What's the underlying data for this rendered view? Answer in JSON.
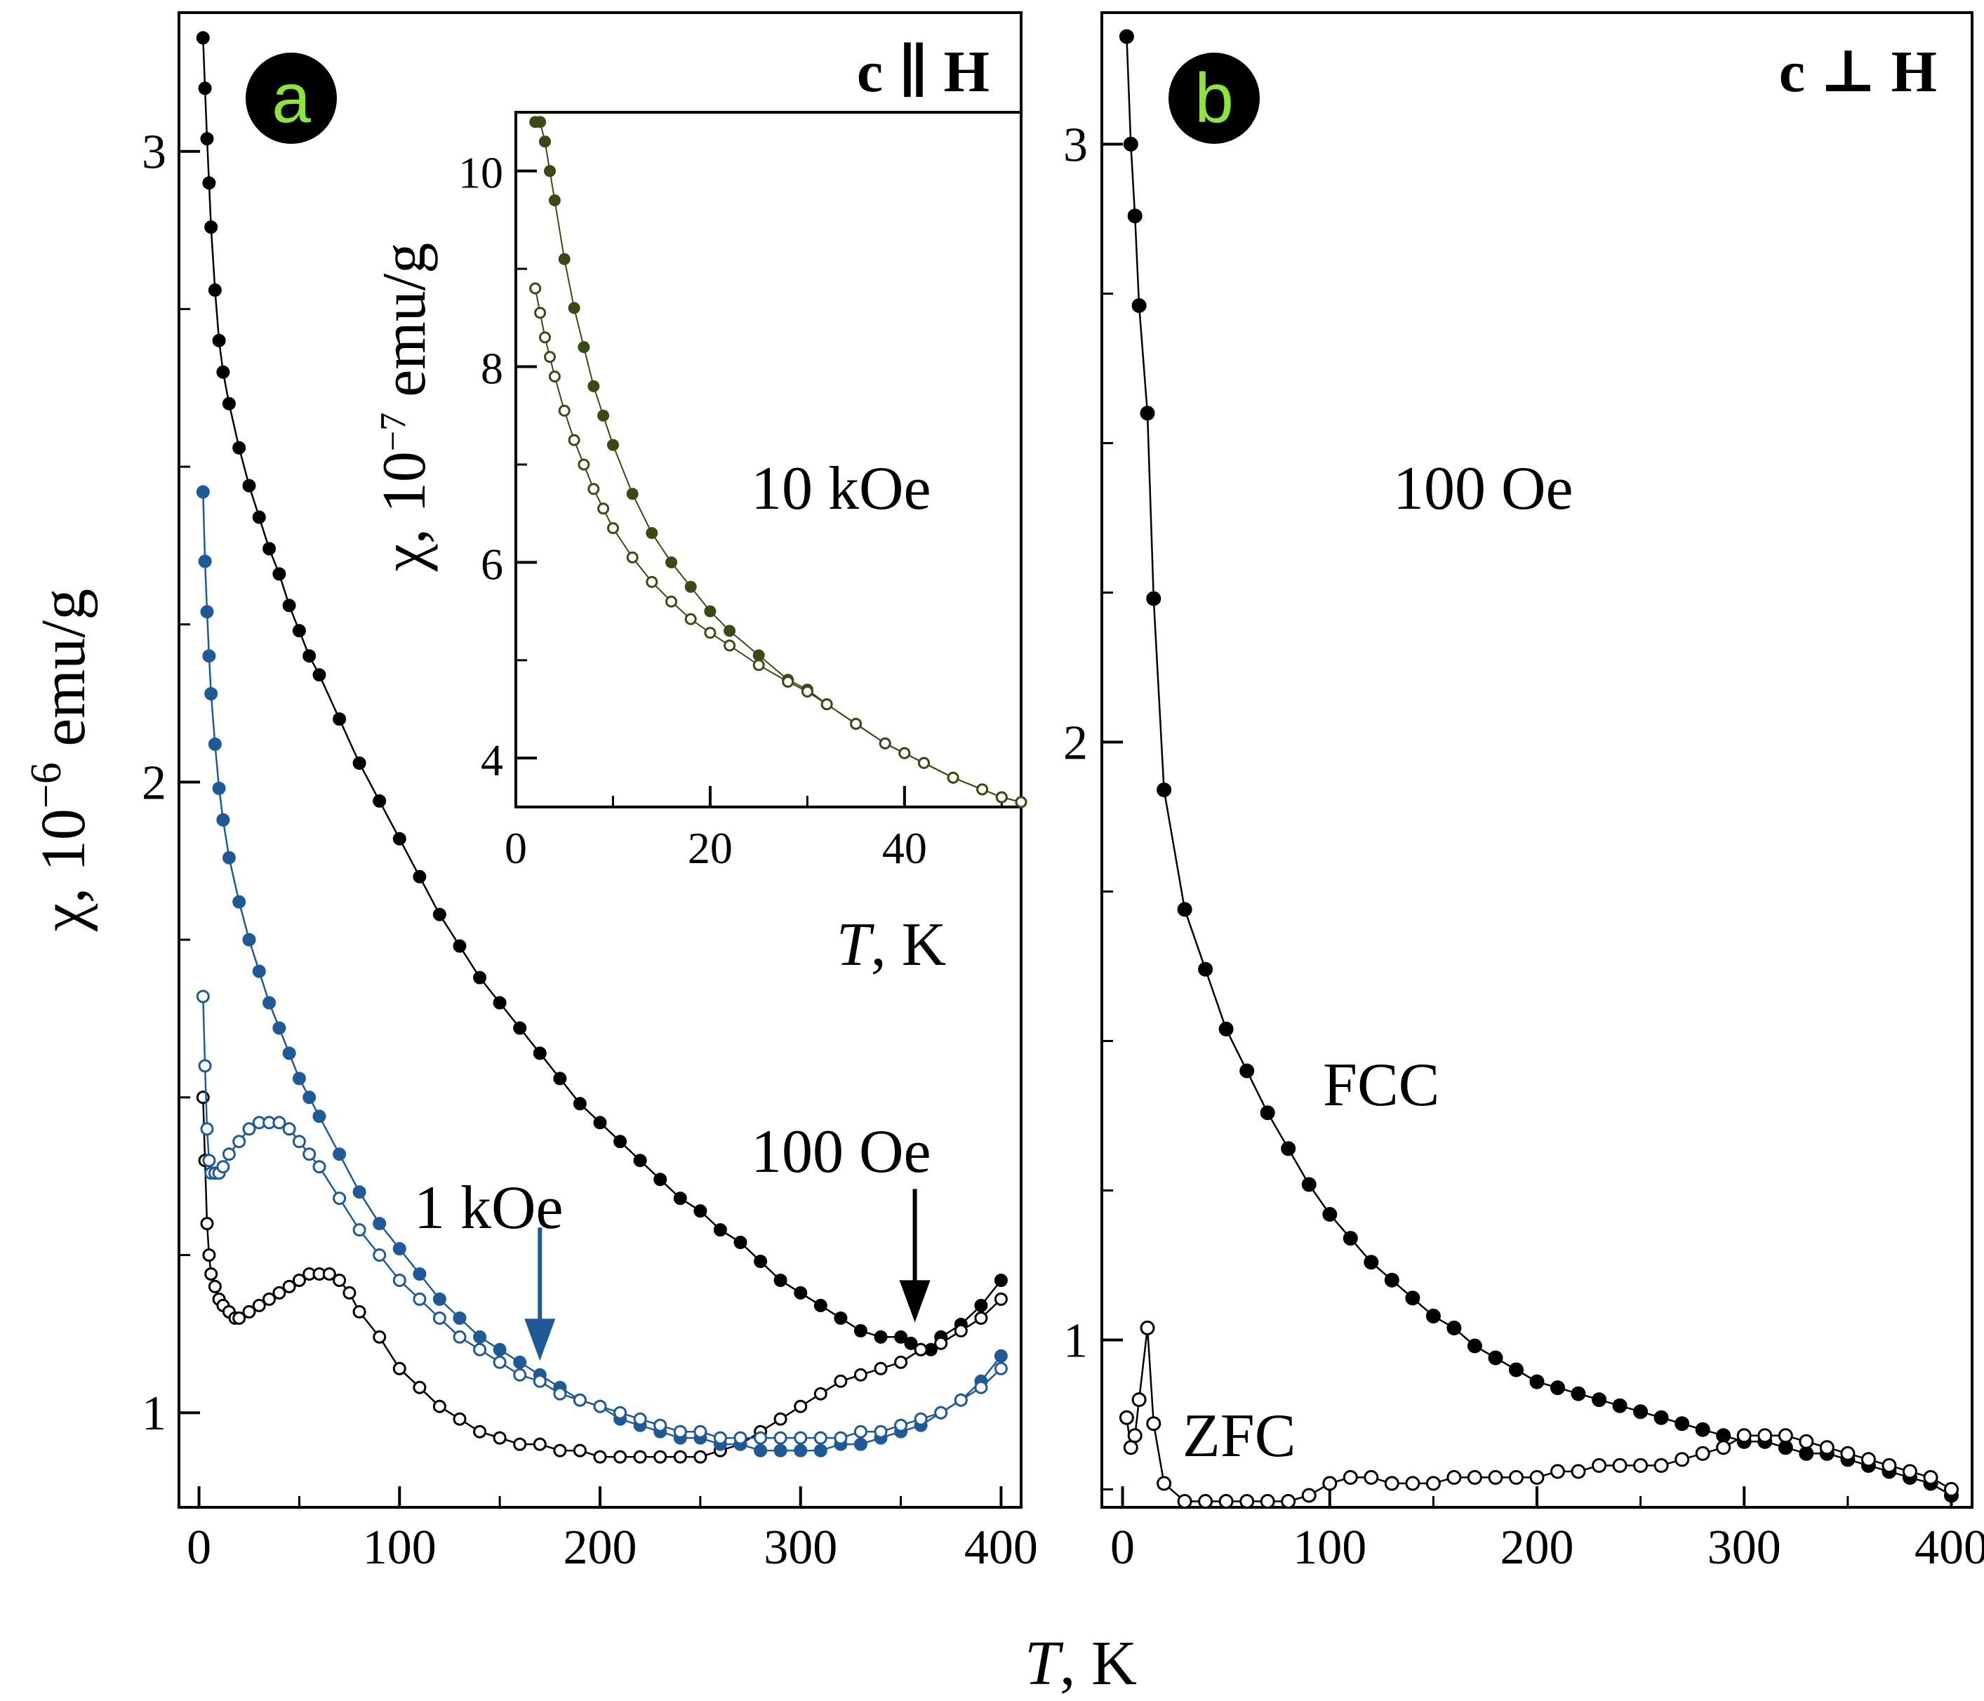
{
  "figure": {
    "x_axis_title_italic": "T",
    "x_axis_title_rest": ", K"
  },
  "chart_data": [
    {
      "panel": "a",
      "type": "line",
      "orientation": "c ∥ H",
      "xlabel": "T, K",
      "ylabel": "χ , 10⁻⁶ emu/g",
      "ylabel_parts": {
        "symbol": "χ",
        "base": ", 10",
        "exponent": "−6",
        "unit": " emu/g"
      },
      "xlim": [
        -10,
        410
      ],
      "ylim": [
        0.85,
        3.22
      ],
      "xticks": [
        0,
        100,
        200,
        300,
        400
      ],
      "yticks": [
        1,
        2,
        3
      ],
      "annotations": [
        {
          "text": "100 Oe",
          "color": "#000000"
        },
        {
          "text": "1 kOe",
          "color": "#1f5a96"
        }
      ],
      "arrows": [
        {
          "series_field": "100 Oe",
          "x": 357,
          "color": "#000000"
        },
        {
          "series_field": "1 kOe",
          "x": 170,
          "color": "#1f5a96"
        }
      ],
      "series": [
        {
          "name": "100 Oe FCC",
          "marker": "filled",
          "color": "#000000",
          "x": [
            2,
            3,
            4,
            5,
            6,
            8,
            10,
            12,
            15,
            20,
            25,
            30,
            35,
            40,
            45,
            50,
            55,
            60,
            70,
            80,
            90,
            100,
            110,
            120,
            130,
            140,
            150,
            160,
            170,
            180,
            190,
            200,
            210,
            220,
            230,
            240,
            250,
            260,
            270,
            280,
            290,
            300,
            310,
            320,
            330,
            340,
            350,
            355,
            360,
            365,
            370,
            380,
            390,
            400
          ],
          "y": [
            3.18,
            3.1,
            3.02,
            2.95,
            2.88,
            2.78,
            2.7,
            2.65,
            2.6,
            2.53,
            2.47,
            2.42,
            2.37,
            2.33,
            2.28,
            2.24,
            2.2,
            2.17,
            2.1,
            2.03,
            1.97,
            1.91,
            1.85,
            1.79,
            1.74,
            1.69,
            1.65,
            1.61,
            1.57,
            1.53,
            1.49,
            1.46,
            1.43,
            1.4,
            1.37,
            1.34,
            1.32,
            1.29,
            1.27,
            1.24,
            1.21,
            1.19,
            1.17,
            1.15,
            1.13,
            1.12,
            1.12,
            1.11,
            1.1,
            1.1,
            1.12,
            1.14,
            1.17,
            1.21
          ]
        },
        {
          "name": "100 Oe ZFC",
          "marker": "open",
          "color": "#000000",
          "x": [
            2,
            3,
            4,
            5,
            6,
            8,
            10,
            12,
            15,
            18,
            20,
            25,
            30,
            35,
            40,
            45,
            50,
            55,
            60,
            65,
            70,
            75,
            80,
            90,
            100,
            110,
            120,
            130,
            140,
            150,
            160,
            170,
            180,
            190,
            200,
            210,
            220,
            230,
            240,
            250,
            260,
            270,
            280,
            290,
            300,
            310,
            320,
            330,
            340,
            350,
            360,
            370,
            380,
            390,
            400
          ],
          "y": [
            1.5,
            1.4,
            1.3,
            1.25,
            1.22,
            1.2,
            1.18,
            1.17,
            1.16,
            1.15,
            1.15,
            1.16,
            1.17,
            1.18,
            1.19,
            1.2,
            1.21,
            1.22,
            1.22,
            1.22,
            1.21,
            1.19,
            1.16,
            1.12,
            1.07,
            1.04,
            1.01,
            0.99,
            0.97,
            0.96,
            0.95,
            0.95,
            0.94,
            0.94,
            0.93,
            0.93,
            0.93,
            0.93,
            0.93,
            0.93,
            0.94,
            0.95,
            0.97,
            0.99,
            1.01,
            1.03,
            1.05,
            1.06,
            1.07,
            1.08,
            1.1,
            1.11,
            1.13,
            1.15,
            1.18
          ]
        },
        {
          "name": "1 kOe FCC",
          "marker": "filled",
          "color": "#1f5a96",
          "x": [
            2,
            3,
            4,
            5,
            6,
            8,
            10,
            12,
            15,
            20,
            25,
            30,
            35,
            40,
            45,
            50,
            55,
            60,
            70,
            80,
            90,
            100,
            110,
            120,
            130,
            140,
            150,
            160,
            170,
            180,
            190,
            200,
            210,
            220,
            230,
            240,
            250,
            260,
            270,
            280,
            290,
            300,
            310,
            320,
            330,
            340,
            350,
            360,
            370,
            380,
            390,
            400
          ],
          "y": [
            2.46,
            2.35,
            2.27,
            2.2,
            2.14,
            2.06,
            1.99,
            1.94,
            1.88,
            1.81,
            1.75,
            1.7,
            1.65,
            1.61,
            1.57,
            1.53,
            1.5,
            1.47,
            1.41,
            1.35,
            1.3,
            1.26,
            1.22,
            1.18,
            1.15,
            1.12,
            1.1,
            1.08,
            1.06,
            1.04,
            1.02,
            1.01,
            0.99,
            0.98,
            0.97,
            0.96,
            0.96,
            0.95,
            0.95,
            0.94,
            0.94,
            0.94,
            0.94,
            0.95,
            0.95,
            0.96,
            0.97,
            0.98,
            1.0,
            1.02,
            1.05,
            1.09
          ]
        },
        {
          "name": "1 kOe ZFC",
          "marker": "open",
          "color": "#1f5a96",
          "x": [
            2,
            3,
            4,
            5,
            6,
            8,
            10,
            12,
            15,
            20,
            25,
            30,
            35,
            40,
            45,
            50,
            55,
            60,
            70,
            80,
            90,
            100,
            110,
            120,
            130,
            140,
            150,
            160,
            170,
            180,
            190,
            200,
            210,
            220,
            230,
            240,
            250,
            260,
            270,
            280,
            290,
            300,
            310,
            320,
            330,
            340,
            350,
            360,
            370,
            380,
            390,
            400
          ],
          "y": [
            1.66,
            1.55,
            1.45,
            1.4,
            1.38,
            1.38,
            1.38,
            1.39,
            1.41,
            1.43,
            1.45,
            1.46,
            1.46,
            1.46,
            1.45,
            1.43,
            1.41,
            1.39,
            1.34,
            1.29,
            1.25,
            1.21,
            1.18,
            1.15,
            1.12,
            1.1,
            1.08,
            1.06,
            1.05,
            1.03,
            1.02,
            1.01,
            1.0,
            0.99,
            0.98,
            0.97,
            0.97,
            0.96,
            0.96,
            0.96,
            0.96,
            0.96,
            0.96,
            0.96,
            0.97,
            0.97,
            0.98,
            0.99,
            1.0,
            1.02,
            1.04,
            1.07
          ]
        }
      ]
    },
    {
      "panel": "a-inset",
      "type": "line",
      "field": "10 kOe",
      "xlabel": "T, K",
      "ylabel": "χ , 10⁻⁷ emu/g",
      "ylabel_parts": {
        "symbol": "χ",
        "base": ", 10",
        "exponent": "−7",
        "unit": " emu/g"
      },
      "xlim": [
        0,
        52
      ],
      "ylim": [
        3.5,
        10.6
      ],
      "xticks": [
        0,
        20,
        40
      ],
      "yticks": [
        4,
        6,
        8,
        10
      ],
      "series": [
        {
          "name": "10 kOe FCC",
          "marker": "filled",
          "color": "#3a4a14",
          "x": [
            2,
            2.5,
            3,
            3.5,
            4,
            5,
            6,
            7,
            8,
            9,
            10,
            12,
            14,
            16,
            18,
            20,
            22,
            25,
            28,
            30,
            32,
            35,
            38,
            40,
            42,
            45,
            48,
            50,
            52
          ],
          "y": [
            10.5,
            10.5,
            10.3,
            10.0,
            9.7,
            9.1,
            8.6,
            8.2,
            7.8,
            7.5,
            7.2,
            6.7,
            6.3,
            6.0,
            5.75,
            5.5,
            5.3,
            5.05,
            4.8,
            4.7,
            4.55,
            4.35,
            4.15,
            4.05,
            3.95,
            3.8,
            3.68,
            3.6,
            3.55
          ]
        },
        {
          "name": "10 kOe ZFC",
          "marker": "open",
          "color": "#3a4a14",
          "x": [
            2,
            2.5,
            3,
            3.5,
            4,
            5,
            6,
            7,
            8,
            9,
            10,
            12,
            14,
            16,
            18,
            20,
            22,
            25,
            28,
            30,
            32,
            35,
            38,
            40,
            42,
            45,
            48,
            50,
            52
          ],
          "y": [
            8.8,
            8.55,
            8.3,
            8.1,
            7.9,
            7.55,
            7.25,
            7.0,
            6.75,
            6.55,
            6.35,
            6.05,
            5.8,
            5.6,
            5.42,
            5.28,
            5.15,
            4.95,
            4.78,
            4.68,
            4.55,
            4.35,
            4.15,
            4.05,
            3.95,
            3.8,
            3.68,
            3.6,
            3.55
          ]
        }
      ]
    },
    {
      "panel": "b",
      "type": "line",
      "orientation": "c ⊥ H",
      "field": "100 Oe",
      "xlabel": "T, K",
      "xlim": [
        -10,
        410
      ],
      "ylim": [
        0.72,
        3.22
      ],
      "xticks": [
        0,
        100,
        200,
        300,
        400
      ],
      "yticks": [
        1,
        2,
        3
      ],
      "annotations": [
        {
          "text": "100 Oe",
          "color": "#000000"
        },
        {
          "text": "FCC",
          "color": "#000000"
        },
        {
          "text": "ZFC",
          "color": "#000000"
        }
      ],
      "series": [
        {
          "name": "FCC",
          "marker": "filled",
          "color": "#000000",
          "x": [
            2,
            4,
            6,
            8,
            12,
            15,
            20,
            30,
            40,
            50,
            60,
            70,
            80,
            90,
            100,
            110,
            120,
            130,
            140,
            150,
            160,
            170,
            180,
            190,
            200,
            210,
            220,
            230,
            240,
            250,
            260,
            270,
            280,
            290,
            300,
            310,
            320,
            330,
            340,
            350,
            360,
            370,
            380,
            390,
            400
          ],
          "y": [
            3.18,
            3.0,
            2.88,
            2.73,
            2.55,
            2.24,
            1.92,
            1.72,
            1.62,
            1.52,
            1.45,
            1.38,
            1.32,
            1.26,
            1.21,
            1.17,
            1.13,
            1.1,
            1.07,
            1.04,
            1.02,
            0.99,
            0.97,
            0.95,
            0.93,
            0.92,
            0.91,
            0.9,
            0.89,
            0.88,
            0.87,
            0.86,
            0.85,
            0.84,
            0.83,
            0.83,
            0.82,
            0.81,
            0.81,
            0.8,
            0.79,
            0.78,
            0.77,
            0.76,
            0.74
          ]
        },
        {
          "name": "ZFC",
          "marker": "open",
          "color": "#000000",
          "x": [
            2,
            4,
            6,
            8,
            12,
            15,
            20,
            30,
            40,
            50,
            60,
            70,
            80,
            90,
            100,
            110,
            120,
            130,
            140,
            150,
            160,
            170,
            180,
            190,
            200,
            210,
            220,
            230,
            240,
            250,
            260,
            270,
            280,
            290,
            300,
            310,
            320,
            330,
            340,
            350,
            360,
            370,
            380,
            390,
            400
          ],
          "y": [
            0.87,
            0.82,
            0.84,
            0.9,
            1.02,
            0.86,
            0.76,
            0.73,
            0.73,
            0.73,
            0.73,
            0.73,
            0.73,
            0.74,
            0.76,
            0.77,
            0.77,
            0.76,
            0.76,
            0.76,
            0.77,
            0.77,
            0.77,
            0.77,
            0.77,
            0.78,
            0.78,
            0.79,
            0.79,
            0.79,
            0.79,
            0.8,
            0.81,
            0.82,
            0.84,
            0.84,
            0.84,
            0.83,
            0.82,
            0.81,
            0.8,
            0.79,
            0.78,
            0.77,
            0.75
          ]
        }
      ]
    }
  ]
}
